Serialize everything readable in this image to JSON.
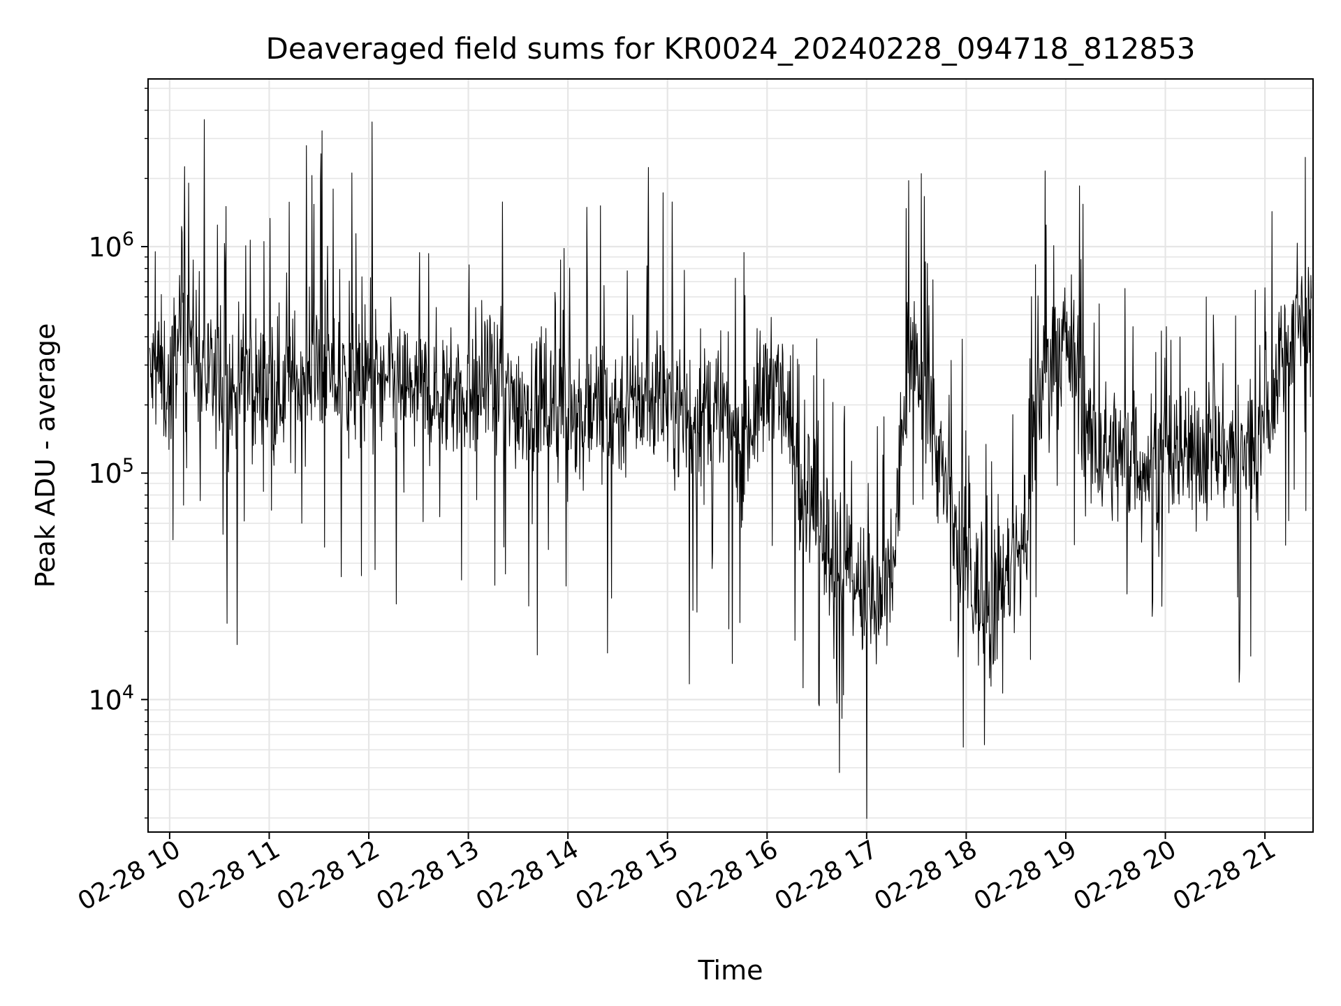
{
  "chart_data": {
    "type": "line",
    "title": "Deaveraged field sums for KR0024_20240228_094718_812853",
    "xlabel": "Time",
    "ylabel": "Peak ADU - average",
    "yscale": "log",
    "ylim": [
      2600,
      5500000
    ],
    "xlim": [
      "2024-02-28T09:47",
      "2024-02-28T21:29"
    ],
    "grid": true,
    "line_color": "#000000",
    "x_ticks": [
      {
        "t": "2024-02-28T10:00",
        "label": "02-28 10"
      },
      {
        "t": "2024-02-28T11:00",
        "label": "02-28 11"
      },
      {
        "t": "2024-02-28T12:00",
        "label": "02-28 12"
      },
      {
        "t": "2024-02-28T13:00",
        "label": "02-28 13"
      },
      {
        "t": "2024-02-28T14:00",
        "label": "02-28 14"
      },
      {
        "t": "2024-02-28T15:00",
        "label": "02-28 15"
      },
      {
        "t": "2024-02-28T16:00",
        "label": "02-28 16"
      },
      {
        "t": "2024-02-28T17:00",
        "label": "02-28 17"
      },
      {
        "t": "2024-02-28T18:00",
        "label": "02-28 18"
      },
      {
        "t": "2024-02-28T19:00",
        "label": "02-28 19"
      },
      {
        "t": "2024-02-28T20:00",
        "label": "02-28 20"
      },
      {
        "t": "2024-02-28T21:00",
        "label": "02-28 21"
      }
    ],
    "y_ticks": [
      {
        "value": 10000,
        "base": "10",
        "exp": "4"
      },
      {
        "value": 100000,
        "base": "10",
        "exp": "5"
      },
      {
        "value": 1000000,
        "base": "10",
        "exp": "6"
      }
    ],
    "series": [
      {
        "x": [
          "2024-02-28T09:48",
          "2024-02-28T09:53",
          "2024-02-28T10:00",
          "2024-02-28T10:08",
          "2024-02-28T10:15",
          "2024-02-28T10:25",
          "2024-02-28T10:35",
          "2024-02-28T10:45",
          "2024-02-28T11:00",
          "2024-02-28T11:15",
          "2024-02-28T11:30",
          "2024-02-28T11:45",
          "2024-02-28T12:00",
          "2024-02-28T12:15",
          "2024-02-28T12:30",
          "2024-02-28T12:45",
          "2024-02-28T13:00",
          "2024-02-28T13:15",
          "2024-02-28T13:30",
          "2024-02-28T13:45",
          "2024-02-28T14:00",
          "2024-02-28T14:15",
          "2024-02-28T14:30",
          "2024-02-28T14:45",
          "2024-02-28T15:00",
          "2024-02-28T15:15",
          "2024-02-28T15:30",
          "2024-02-28T15:45",
          "2024-02-28T15:55",
          "2024-02-28T16:05",
          "2024-02-28T16:15",
          "2024-02-28T16:25",
          "2024-02-28T16:35",
          "2024-02-28T16:45",
          "2024-02-28T16:55",
          "2024-02-28T17:05",
          "2024-02-28T17:15",
          "2024-02-28T17:25",
          "2024-02-28T17:35",
          "2024-02-28T17:45",
          "2024-02-28T17:55",
          "2024-02-28T18:05",
          "2024-02-28T18:15",
          "2024-02-28T18:25",
          "2024-02-28T18:35",
          "2024-02-28T18:45",
          "2024-02-28T18:55",
          "2024-02-28T19:05",
          "2024-02-28T19:15",
          "2024-02-28T19:30",
          "2024-02-28T19:45",
          "2024-02-28T20:00",
          "2024-02-28T20:15",
          "2024-02-28T20:30",
          "2024-02-28T20:45",
          "2024-02-28T21:00",
          "2024-02-28T21:10",
          "2024-02-28T21:20",
          "2024-02-28T21:28"
        ],
        "y": [
          250000,
          300000,
          220000,
          600000,
          350000,
          250000,
          220000,
          250000,
          230000,
          250000,
          280000,
          250000,
          260000,
          250000,
          230000,
          220000,
          240000,
          230000,
          210000,
          200000,
          210000,
          200000,
          190000,
          210000,
          220000,
          170000,
          190000,
          140000,
          200000,
          300000,
          130000,
          80000,
          50000,
          40000,
          30000,
          25000,
          30000,
          350000,
          250000,
          100000,
          50000,
          30000,
          25000,
          35000,
          50000,
          250000,
          400000,
          350000,
          130000,
          120000,
          110000,
          110000,
          130000,
          130000,
          120000,
          140000,
          350000,
          500000,
          500000
        ]
      }
    ]
  }
}
